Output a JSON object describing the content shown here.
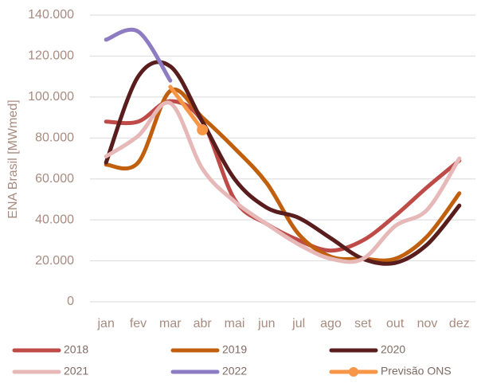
{
  "chart_data": {
    "type": "line",
    "y_label": "ENA Brasil [MWmed]",
    "categories": [
      "jan",
      "fev",
      "mar",
      "abr",
      "mai",
      "jun",
      "jul",
      "ago",
      "set",
      "out",
      "nov",
      "dez"
    ],
    "ylim": [
      0,
      140000
    ],
    "yticks": [
      0,
      {
        "value": 20000,
        "label": "20.000"
      },
      {
        "value": 40000,
        "label": "40.000"
      },
      {
        "value": 60000,
        "label": "60.000"
      },
      {
        "value": 80000,
        "label": "80.000"
      },
      {
        "value": 100000,
        "label": "100.000"
      },
      {
        "value": 120000,
        "label": "120.000"
      },
      {
        "value": 140000,
        "label": "140.000"
      }
    ],
    "grid": true,
    "legend": "bottom",
    "series": [
      {
        "name": "2018",
        "color": "#be4b48",
        "values": [
          88000,
          88000,
          98000,
          88000,
          50000,
          38000,
          30000,
          25000,
          30000,
          42000,
          56000,
          69000
        ]
      },
      {
        "name": "2019",
        "color": "#c0600f",
        "values": [
          67000,
          68000,
          103000,
          90000,
          75000,
          58000,
          33000,
          22000,
          21000,
          21000,
          32000,
          53000
        ]
      },
      {
        "name": "2020",
        "color": "#5a1d1d",
        "values": [
          68000,
          110000,
          115000,
          88000,
          60000,
          46000,
          41000,
          31000,
          21000,
          19000,
          28000,
          47000
        ]
      },
      {
        "name": "2021",
        "color": "#e6b9b8",
        "values": [
          71000,
          81000,
          97000,
          65000,
          49000,
          38000,
          28000,
          21000,
          21000,
          37000,
          45000,
          70000
        ]
      },
      {
        "name": "2022",
        "color": "#8e7cc3",
        "values": [
          128000,
          132000,
          108000,
          null,
          null,
          null,
          null,
          null,
          null,
          null,
          null,
          null
        ]
      },
      {
        "name": "Previsão ONS",
        "color": "#f79646",
        "marker": "circle",
        "values": [
          null,
          null,
          105000,
          84000,
          null,
          null,
          null,
          null,
          null,
          null,
          null,
          null
        ]
      }
    ]
  }
}
